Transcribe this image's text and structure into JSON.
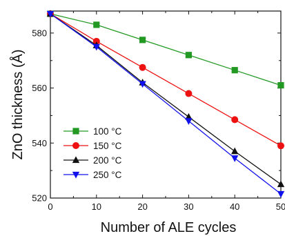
{
  "chart_data": {
    "type": "line",
    "xlabel": "Number of ALE cycles",
    "ylabel": "ZnO thickness (Å)",
    "xlim": [
      0,
      50
    ],
    "ylim": [
      520,
      588
    ],
    "x_ticks": [
      0,
      10,
      20,
      30,
      40,
      50
    ],
    "y_ticks": [
      520,
      540,
      560,
      580
    ],
    "grid": false,
    "legend_position": "lower-left",
    "x": [
      0,
      10,
      20,
      30,
      40,
      50
    ],
    "series": [
      {
        "name": "100 °C",
        "color": "#229922",
        "marker": "square",
        "values": [
          587,
          583,
          577.5,
          572,
          566.5,
          561
        ]
      },
      {
        "name": "150 °C",
        "color": "#ee1111",
        "marker": "circle",
        "values": [
          587,
          577,
          567.5,
          558,
          548.5,
          539
        ]
      },
      {
        "name": "200 °C",
        "color": "#111111",
        "marker": "triangle-up",
        "values": [
          587,
          575.5,
          562,
          549.5,
          537,
          525
        ]
      },
      {
        "name": "250 °C",
        "color": "#1111ee",
        "marker": "triangle-down",
        "values": [
          587,
          575,
          561.5,
          548,
          534.5,
          521.5
        ]
      }
    ]
  }
}
